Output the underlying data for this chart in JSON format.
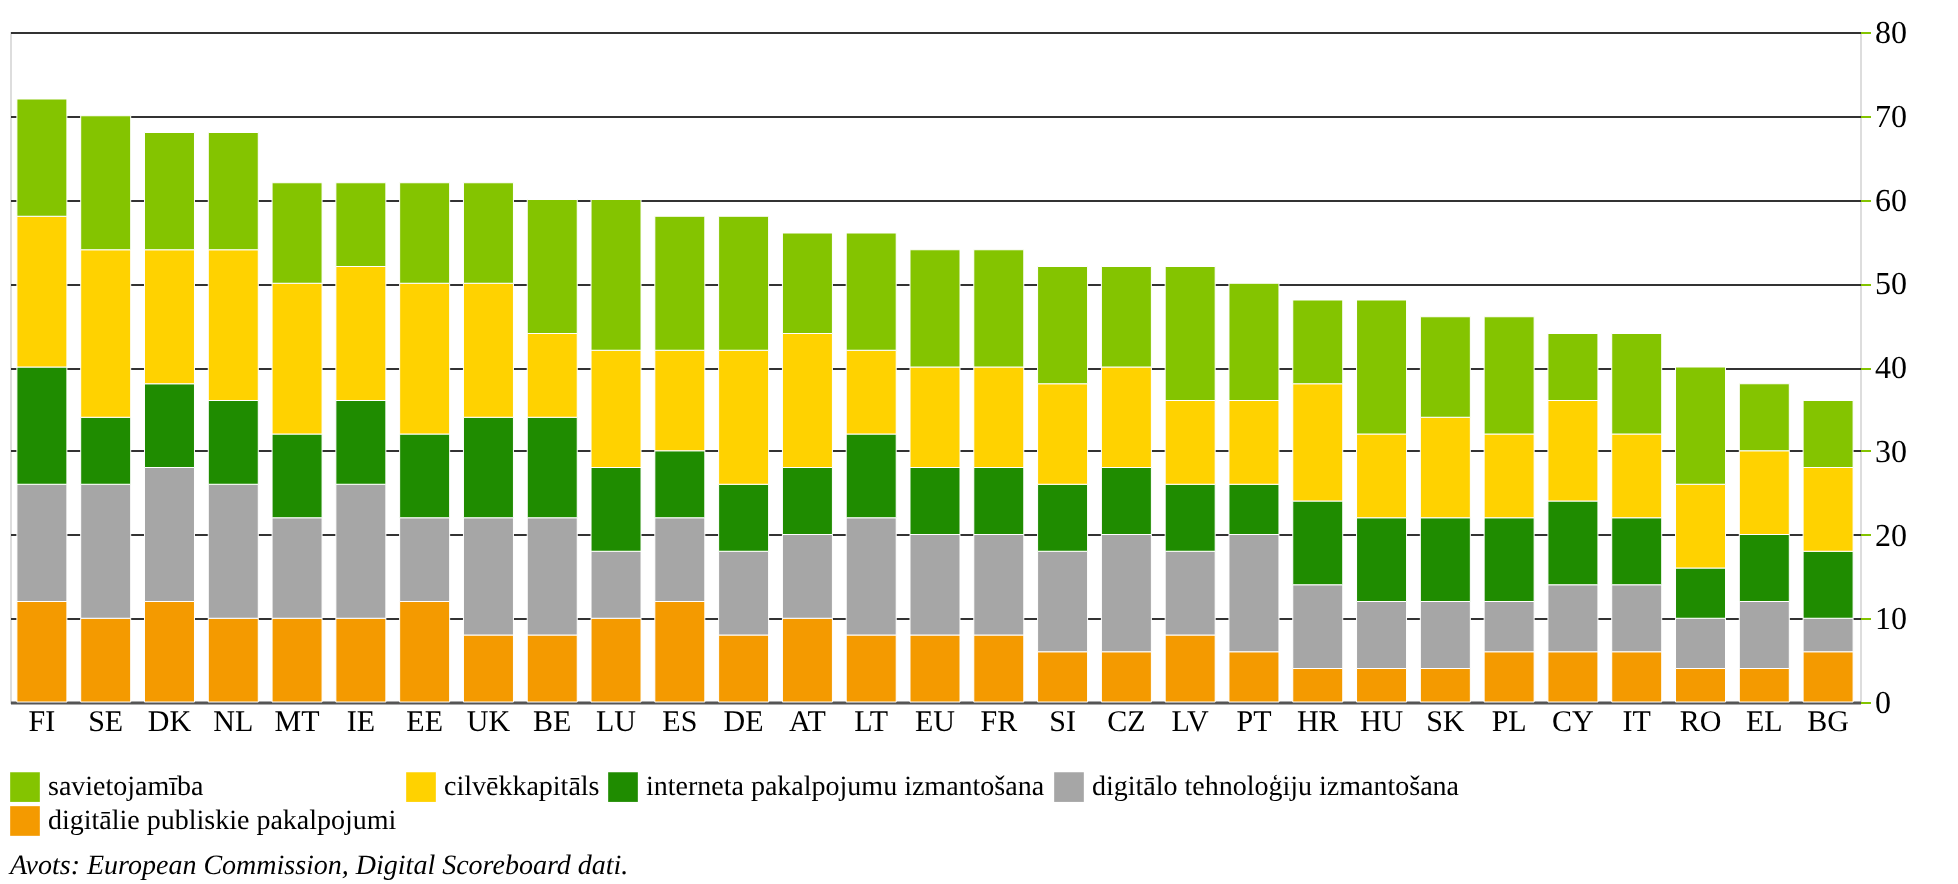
{
  "chart_data": {
    "type": "bar",
    "stacked": true,
    "categories": [
      "FI",
      "SE",
      "DK",
      "NL",
      "MT",
      "IE",
      "EE",
      "UK",
      "BE",
      "LU",
      "ES",
      "DE",
      "AT",
      "LT",
      "EU",
      "FR",
      "SI",
      "CZ",
      "LV",
      "PT",
      "HR",
      "HU",
      "SK",
      "PL",
      "CY",
      "IT",
      "RO",
      "EL",
      "BG"
    ],
    "series": [
      {
        "name": "digitālie publiskie pakalpojumi",
        "color": "#f49a00",
        "values": [
          12,
          10,
          12,
          10,
          10,
          10,
          12,
          8,
          8,
          10,
          12,
          8,
          10,
          8,
          8,
          8,
          6,
          6,
          8,
          6,
          4,
          4,
          4,
          6,
          6,
          6,
          4,
          4,
          6
        ]
      },
      {
        "name": "digitālo tehnoloģiju izmantošana",
        "color": "#a6a6a6",
        "values": [
          14,
          16,
          16,
          16,
          12,
          16,
          10,
          14,
          14,
          8,
          10,
          10,
          10,
          14,
          12,
          12,
          12,
          14,
          10,
          14,
          10,
          8,
          8,
          6,
          8,
          8,
          6,
          8,
          4
        ]
      },
      {
        "name": "interneta pakalpojumu izmantošana",
        "color": "#1f8c00",
        "values": [
          14,
          8,
          10,
          10,
          10,
          10,
          10,
          12,
          12,
          10,
          8,
          8,
          8,
          10,
          8,
          8,
          8,
          8,
          8,
          6,
          10,
          10,
          10,
          10,
          10,
          8,
          6,
          8,
          8
        ]
      },
      {
        "name": "cilvēkkapitāls",
        "color": "#ffd200",
        "values": [
          18,
          20,
          16,
          18,
          18,
          16,
          18,
          16,
          10,
          14,
          12,
          16,
          16,
          10,
          12,
          12,
          12,
          12,
          10,
          10,
          14,
          10,
          12,
          10,
          12,
          10,
          10,
          10,
          10
        ]
      },
      {
        "name": "savietojamība",
        "color": "#84c400",
        "values": [
          14,
          16,
          14,
          14,
          12,
          10,
          12,
          12,
          16,
          18,
          16,
          16,
          12,
          14,
          14,
          14,
          14,
          12,
          16,
          14,
          10,
          16,
          12,
          14,
          8,
          12,
          14,
          8,
          8
        ]
      }
    ],
    "ylim": [
      0,
      80
    ],
    "yticks": [
      0,
      10,
      20,
      30,
      40,
      50,
      60,
      70,
      80
    ],
    "grid": "y",
    "legend": "bottom",
    "annotations": [
      "Avots: European Commission, Digital Scoreboard dati."
    ]
  }
}
